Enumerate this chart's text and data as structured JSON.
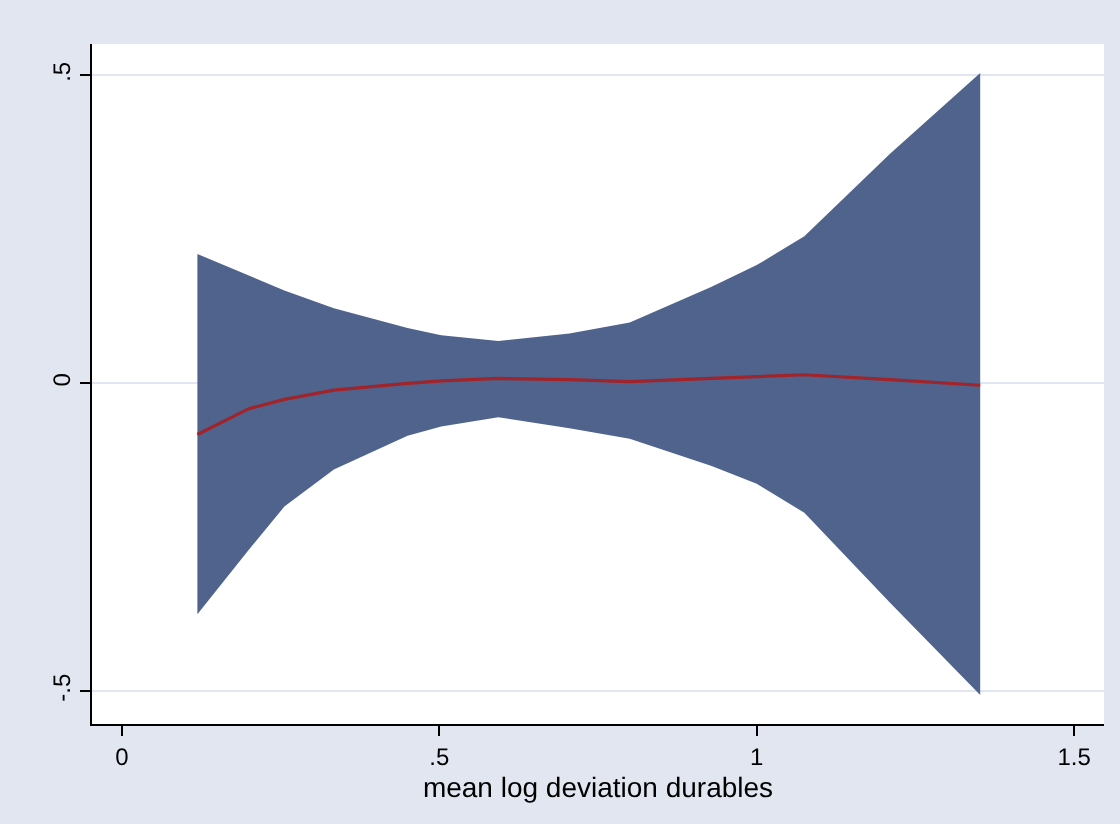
{
  "chart_data": {
    "type": "line",
    "xlabel": "mean log deviation durables",
    "x": [
      0.119,
      0.2,
      0.256,
      0.334,
      0.45,
      0.503,
      0.593,
      0.705,
      0.8,
      0.929,
      1.0,
      1.075,
      1.21,
      1.352
    ],
    "series": [
      {
        "color": "#a0242a",
        "values": [
          -0.083,
          -0.041,
          -0.026,
          -0.011,
          0.0,
          0.004,
          0.008,
          0.006,
          0.003,
          0.008,
          0.011,
          0.014,
          0.006,
          -0.003
        ],
        "lower": [
          -0.375,
          -0.27,
          -0.2,
          -0.14,
          -0.085,
          -0.07,
          -0.055,
          -0.073,
          -0.09,
          -0.134,
          -0.163,
          -0.21,
          -0.356,
          -0.506
        ],
        "upper": [
          0.21,
          0.175,
          0.151,
          0.122,
          0.09,
          0.078,
          0.069,
          0.081,
          0.099,
          0.157,
          0.192,
          0.239,
          0.373,
          0.504
        ]
      }
    ],
    "xlim": [
      -0.047,
      1.547
    ],
    "ylim": [
      -0.553,
      0.551
    ],
    "xticks": [
      0,
      {
        "value": 0.5,
        "label": ".5"
      },
      1,
      1.5
    ],
    "yticks": [
      {
        "value": -0.5,
        "label": "-.5"
      },
      0,
      {
        "value": 0.5,
        "label": ".5"
      }
    ],
    "grid": "y",
    "marker": "none",
    "line_style": "solid"
  }
}
